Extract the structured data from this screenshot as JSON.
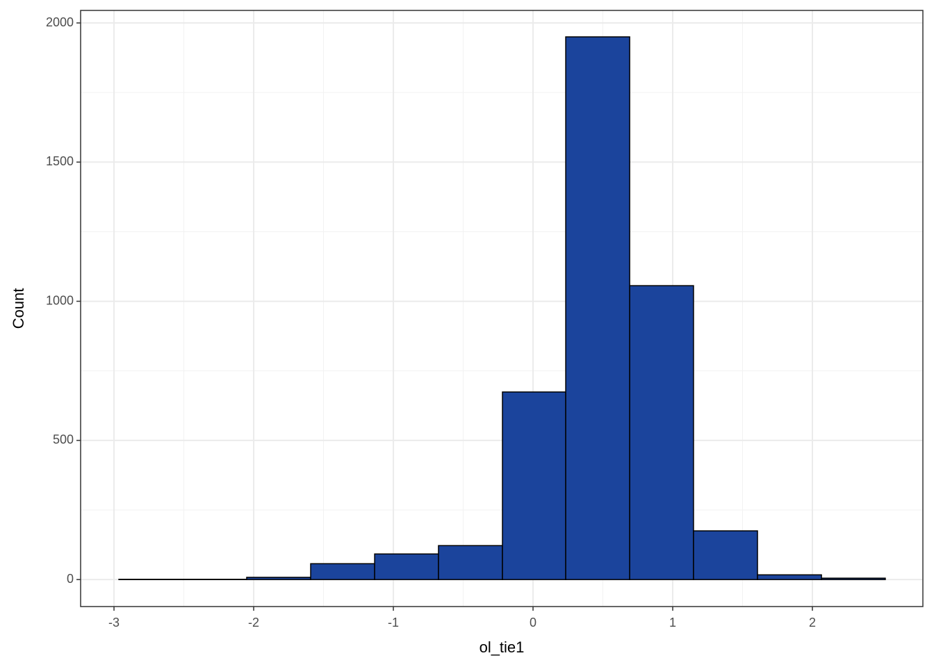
{
  "chart_data": {
    "type": "histogram",
    "x_label": "ol_tie1",
    "y_label": "Count",
    "bins": [
      -2.965,
      -2.507,
      -2.05,
      -1.592,
      -1.134,
      -0.677,
      -0.219,
      0.234,
      0.692,
      1.149,
      1.607,
      2.065,
      2.522
    ],
    "values": [
      1,
      1,
      8,
      57,
      92,
      122,
      674,
      1950,
      1056,
      175,
      17,
      5
    ],
    "color": "#1b449c",
    "xlim": [
      -3.239,
      2.791
    ],
    "xticks": [
      -3,
      -2,
      -1,
      0,
      1,
      2
    ],
    "ylim": [
      -97,
      2045
    ],
    "yticks": [
      0,
      500,
      1000,
      1500,
      2000
    ],
    "grid": true,
    "minor_grid": true
  }
}
